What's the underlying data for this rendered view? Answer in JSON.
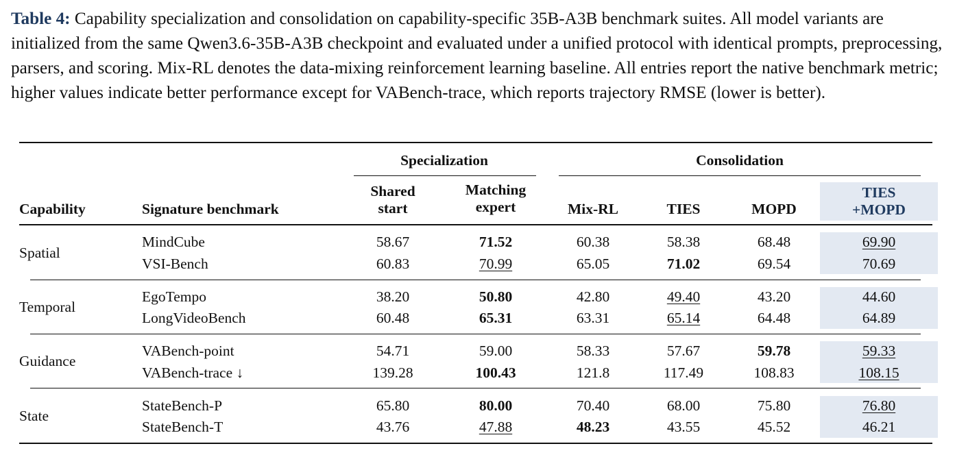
{
  "caption": {
    "label": "Table 4:",
    "text": " Capability specialization and consolidation on capability-specific 35B-A3B benchmark suites. All model variants are initialized from the same Qwen3.6-35B-A3B checkpoint and evaluated under a unified protocol with identical prompts, preprocessing, parsers, and scoring. Mix-RL denotes the data-mixing reinforcement learning baseline. All entries report the native benchmark metric; higher values indicate better performance except for VABench-trace, which reports trajectory RMSE (lower is better)."
  },
  "table": {
    "groups": {
      "specialization": "Specialization",
      "consolidation": "Consolidation"
    },
    "headers": {
      "capability": "Capability",
      "benchmark": "Signature benchmark",
      "shared_1": "Shared",
      "shared_2": "start",
      "matching_1": "Matching",
      "matching_2": "expert",
      "mixrl": "Mix-RL",
      "ties": "TIES",
      "mopd": "MOPD",
      "tiesmopd_1": "TIES",
      "tiesmopd_2": "+MOPD"
    },
    "sections": [
      {
        "capability": "Spatial",
        "rows": [
          {
            "benchmark": "MindCube",
            "values": [
              "58.67",
              "71.52",
              "60.38",
              "58.38",
              "68.48",
              "69.90"
            ]
          },
          {
            "benchmark": "VSI-Bench",
            "values": [
              "60.83",
              "70.99",
              "65.05",
              "71.02",
              "69.54",
              "70.69"
            ]
          }
        ]
      },
      {
        "capability": "Temporal",
        "rows": [
          {
            "benchmark": "EgoTempo",
            "values": [
              "38.20",
              "50.80",
              "42.80",
              "49.40",
              "43.20",
              "44.60"
            ]
          },
          {
            "benchmark": "LongVideoBench",
            "values": [
              "60.48",
              "65.31",
              "63.31",
              "65.14",
              "64.48",
              "64.89"
            ]
          }
        ]
      },
      {
        "capability": "Guidance",
        "rows": [
          {
            "benchmark": "VABench-point",
            "values": [
              "54.71",
              "59.00",
              "58.33",
              "57.67",
              "59.78",
              "59.33"
            ]
          },
          {
            "benchmark": "VABench-trace ↓",
            "values": [
              "139.28",
              "100.43",
              "121.8",
              "117.49",
              "108.83",
              "108.15"
            ]
          }
        ]
      },
      {
        "capability": "State",
        "rows": [
          {
            "benchmark": "StateBench-P",
            "values": [
              "65.80",
              "80.00",
              "70.40",
              "68.00",
              "75.80",
              "76.80"
            ]
          },
          {
            "benchmark": "StateBench-T",
            "values": [
              "43.76",
              "47.88",
              "48.23",
              "43.55",
              "45.52",
              "46.21"
            ]
          }
        ]
      }
    ]
  }
}
